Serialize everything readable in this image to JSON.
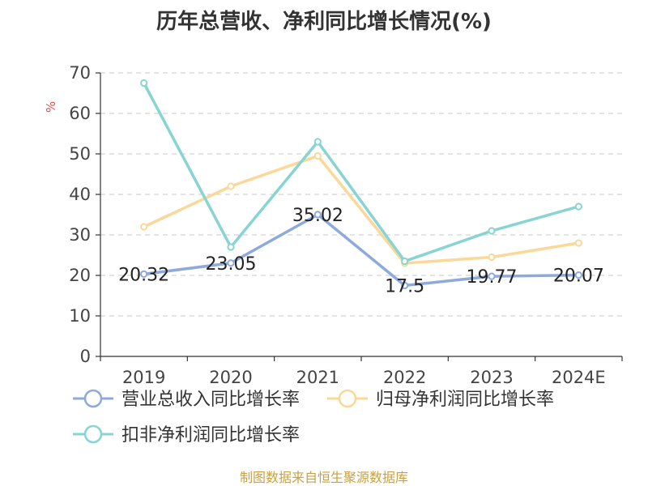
{
  "chart_data": {
    "type": "line",
    "title": "历年总营收、净利同比增长情况(%)",
    "ylabel": "%",
    "xlabel": "",
    "categories": [
      "2019",
      "2020",
      "2021",
      "2022",
      "2023",
      "2024E"
    ],
    "ylim": [
      0,
      70
    ],
    "yticks": [
      0,
      10,
      20,
      30,
      40,
      50,
      60,
      70
    ],
    "grid": true,
    "legend_position": "bottom",
    "series": [
      {
        "name": "营业总收入同比增长率",
        "values": [
          20.32,
          23.05,
          35.02,
          17.5,
          19.77,
          20.07
        ],
        "data_labels": [
          "20.32",
          "23.05",
          "35.02",
          "17.5",
          "19.77",
          "20.07"
        ],
        "color": "#8eaadb"
      },
      {
        "name": "归母净利润同比增长率",
        "values": [
          32.0,
          42.0,
          49.5,
          23.0,
          24.5,
          28.0
        ],
        "color": "#fbd89a"
      },
      {
        "name": "扣非净利润同比增长率",
        "values": [
          67.5,
          27.0,
          53.0,
          23.5,
          31.0,
          37.0
        ],
        "color": "#87d4d3"
      }
    ],
    "source": "制图数据来自恒生聚源数据库"
  }
}
